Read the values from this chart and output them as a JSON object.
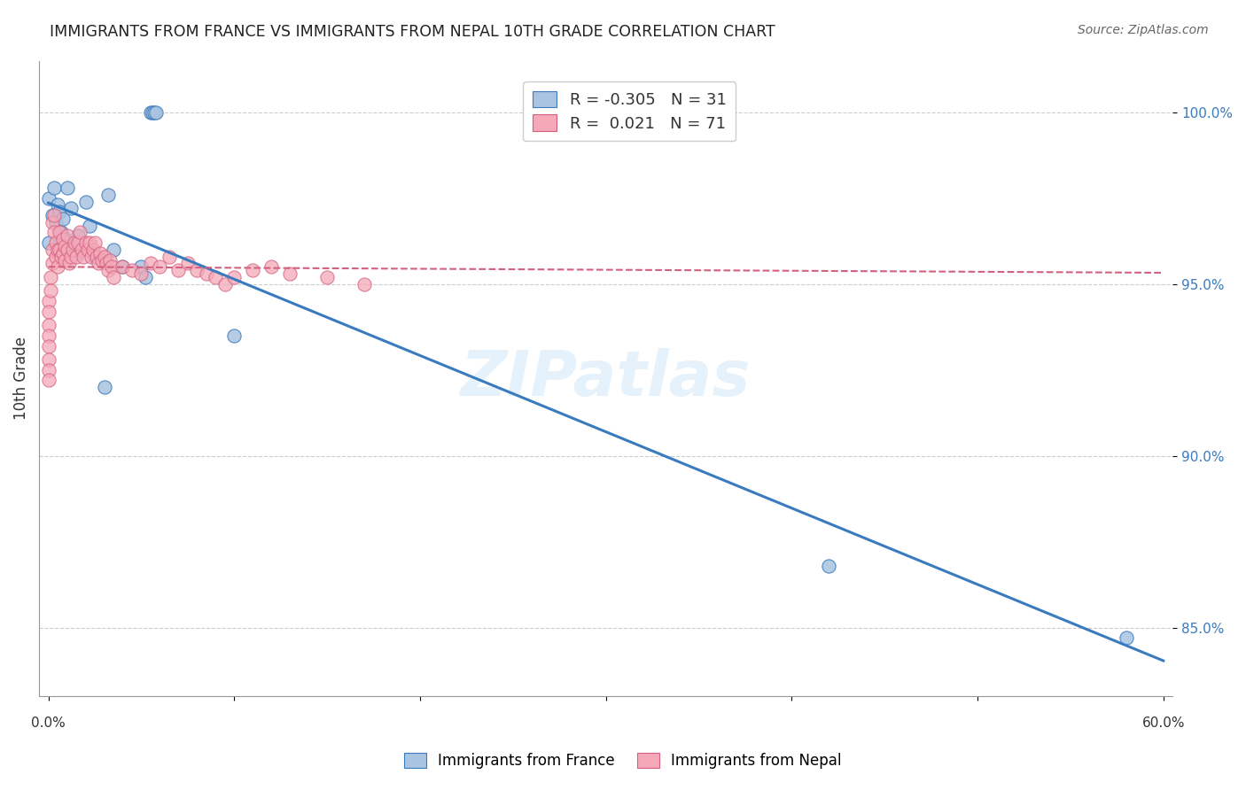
{
  "title": "IMMIGRANTS FROM FRANCE VS IMMIGRANTS FROM NEPAL 10TH GRADE CORRELATION CHART",
  "source": "Source: ZipAtlas.com",
  "ylabel": "10th Grade",
  "yticks": [
    85.0,
    90.0,
    95.0,
    100.0
  ],
  "xlim": [
    0.0,
    0.6
  ],
  "ylim": [
    83.0,
    101.5
  ],
  "watermark": "ZIPatlas",
  "legend_france": "Immigrants from France",
  "legend_nepal": "Immigrants from Nepal",
  "R_france": -0.305,
  "N_france": 31,
  "R_nepal": 0.021,
  "N_nepal": 71,
  "color_france": "#a8c4e0",
  "color_nepal": "#f4a8b8",
  "line_color_france": "#3a7bbf",
  "line_color_nepal": "#d46080",
  "france_x": [
    0.0,
    0.0,
    0.002,
    0.003,
    0.004,
    0.005,
    0.006,
    0.007,
    0.008,
    0.009,
    0.01,
    0.012,
    0.013,
    0.015,
    0.016,
    0.02,
    0.022,
    0.025,
    0.03,
    0.032,
    0.035,
    0.04,
    0.05,
    0.052,
    0.055,
    0.056,
    0.057,
    0.058,
    0.1,
    0.42,
    0.58
  ],
  "france_y": [
    97.5,
    96.2,
    97.0,
    97.8,
    96.8,
    97.3,
    97.1,
    96.5,
    96.9,
    96.3,
    97.8,
    97.2,
    96.1,
    95.9,
    96.4,
    97.4,
    96.7,
    95.8,
    92.0,
    97.6,
    96.0,
    95.5,
    95.5,
    95.2,
    100.0,
    100.0,
    100.0,
    100.0,
    93.5,
    86.8,
    84.7
  ],
  "nepal_x": [
    0.0,
    0.0,
    0.0,
    0.0,
    0.0,
    0.0,
    0.0,
    0.0,
    0.001,
    0.001,
    0.002,
    0.002,
    0.002,
    0.003,
    0.003,
    0.004,
    0.004,
    0.005,
    0.005,
    0.006,
    0.006,
    0.007,
    0.008,
    0.008,
    0.009,
    0.009,
    0.01,
    0.01,
    0.011,
    0.012,
    0.013,
    0.014,
    0.015,
    0.016,
    0.017,
    0.018,
    0.019,
    0.02,
    0.021,
    0.022,
    0.023,
    0.024,
    0.025,
    0.026,
    0.027,
    0.028,
    0.029,
    0.03,
    0.031,
    0.032,
    0.033,
    0.034,
    0.035,
    0.04,
    0.045,
    0.05,
    0.055,
    0.06,
    0.065,
    0.07,
    0.075,
    0.08,
    0.085,
    0.09,
    0.095,
    0.1,
    0.11,
    0.12,
    0.13,
    0.15,
    0.17
  ],
  "nepal_y": [
    94.5,
    94.2,
    93.8,
    93.5,
    93.2,
    92.8,
    92.5,
    92.2,
    95.2,
    94.8,
    96.8,
    96.0,
    95.6,
    97.0,
    96.5,
    96.2,
    95.8,
    96.0,
    95.5,
    96.5,
    96.0,
    95.8,
    96.3,
    95.9,
    96.1,
    95.7,
    96.4,
    96.0,
    95.6,
    95.8,
    96.0,
    96.2,
    95.8,
    96.2,
    96.5,
    96.0,
    95.8,
    96.2,
    96.0,
    96.2,
    95.8,
    96.0,
    96.2,
    95.8,
    95.6,
    95.9,
    95.7,
    95.8,
    95.6,
    95.4,
    95.7,
    95.5,
    95.2,
    95.5,
    95.4,
    95.3,
    95.6,
    95.5,
    95.8,
    95.4,
    95.6,
    95.4,
    95.3,
    95.2,
    95.0,
    95.2,
    95.4,
    95.5,
    95.3,
    95.2,
    95.0
  ]
}
